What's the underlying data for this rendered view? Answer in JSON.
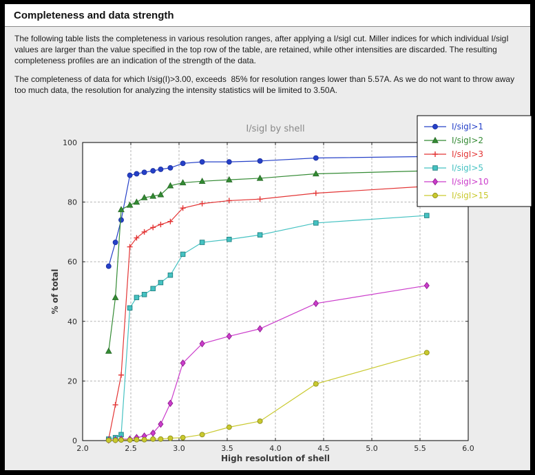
{
  "page": {
    "title": "Completeness and data strength",
    "paragraph1": "The following table lists the completeness in various resolution ranges, after applying a I/sigI cut. Miller indices for which individual I/sigI values are larger than the value specified in the top row of the table, are retained, while other intensities are discarded. The resulting completeness profiles are an indication of the strength of the data.",
    "paragraph2": "The completeness of data for which I/sig(I)>3.00, exceeds  85% for resolution ranges lower than 5.57A. As we do not want to throw away too much data, the resolution for analyzing the intensity statistics will be limited to 3.50A."
  },
  "chart_data": {
    "type": "line",
    "title": "I/sigI by shell",
    "xlabel": "High resolution of shell",
    "ylabel": "% of total",
    "xlim": [
      2.0,
      6.0
    ],
    "ylim": [
      0,
      100
    ],
    "xticks": [
      2.0,
      2.5,
      3.0,
      3.5,
      4.0,
      4.5,
      5.0,
      5.5,
      6.0
    ],
    "xtick_labels": [
      "2.0",
      "2.5",
      "3.0",
      "3.5",
      "4.0",
      "4.5",
      "5.0",
      "5.5",
      "6.0"
    ],
    "yticks": [
      0,
      20,
      40,
      60,
      80,
      100
    ],
    "ytick_labels": [
      "0",
      "20",
      "40",
      "60",
      "80",
      "100"
    ],
    "grid": true,
    "grid_style": "dashed",
    "legend_position": "top-right",
    "x": [
      2.27,
      2.34,
      2.4,
      2.49,
      2.56,
      2.64,
      2.73,
      2.81,
      2.91,
      3.04,
      3.24,
      3.52,
      3.84,
      4.42,
      5.57
    ],
    "series": [
      {
        "name": "I/sigI>1",
        "color": "#2540c8",
        "edge": "#1c30a0",
        "marker": "circle",
        "values": [
          58.5,
          66.5,
          74.0,
          89.0,
          89.5,
          90.0,
          90.5,
          91.0,
          91.5,
          93.0,
          93.5,
          93.5,
          93.8,
          94.8,
          95.3
        ]
      },
      {
        "name": "I/sigI>2",
        "color": "#338a33",
        "edge": "#256825",
        "marker": "triangle",
        "values": [
          30.0,
          48.0,
          77.5,
          79.0,
          80.0,
          81.5,
          82.0,
          82.5,
          85.5,
          86.5,
          87.0,
          87.5,
          88.0,
          89.5,
          90.5
        ]
      },
      {
        "name": "I/sigI>3",
        "color": "#e33434",
        "edge": "#e33434",
        "marker": "plus",
        "values": [
          0.5,
          12.0,
          22.0,
          65.0,
          68.0,
          70.0,
          71.5,
          72.5,
          73.5,
          78.0,
          79.5,
          80.5,
          81.0,
          83.0,
          85.3
        ]
      },
      {
        "name": "I/sigI>5",
        "color": "#45c2c2",
        "edge": "#1d7f7f",
        "marker": "square",
        "values": [
          0.5,
          1.0,
          2.0,
          44.5,
          48.0,
          49.0,
          51.0,
          53.0,
          55.5,
          62.5,
          66.5,
          67.5,
          69.0,
          73.0,
          75.5
        ]
      },
      {
        "name": "I/sigI>10",
        "color": "#cb3ccb",
        "edge": "#8e1d8e",
        "marker": "diamond",
        "values": [
          0.2,
          0.3,
          0.5,
          0.5,
          1.0,
          1.5,
          2.5,
          5.5,
          12.5,
          26.0,
          32.5,
          35.0,
          37.5,
          46.0,
          52.0
        ]
      },
      {
        "name": "I/sigI>15",
        "color": "#c9c92e",
        "edge": "#8f8f1c",
        "marker": "circle",
        "values": [
          0.1,
          0.1,
          0.2,
          0.2,
          0.3,
          0.3,
          0.5,
          0.5,
          0.8,
          1.0,
          2.0,
          4.5,
          6.5,
          19.0,
          29.5
        ]
      }
    ],
    "colors": {
      "page_background": "#ececec",
      "plot_background": "#ffffff",
      "frame_border": "#000000",
      "outer_border": "#000000",
      "grid": "#a9a9a9",
      "chart_title": "#888888",
      "axis_label": "#3a3a3a",
      "tick_label": "#2b2b2b"
    }
  }
}
